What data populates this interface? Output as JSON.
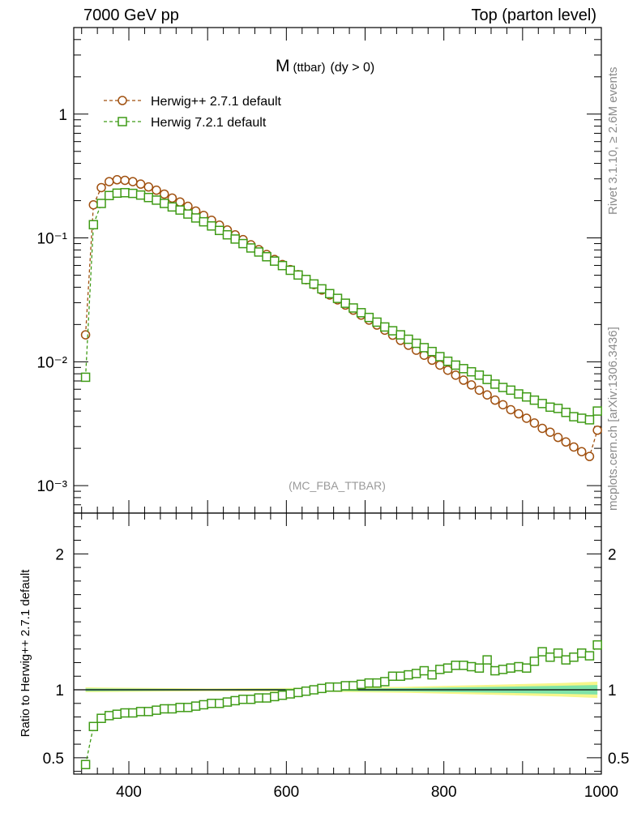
{
  "header": {
    "left": "7000 GeV pp",
    "right": "Top (parton level)"
  },
  "sidetext": {
    "rivet": "Rivet 3.1.10, ≥ 2.6M events",
    "mcplots": "mcplots.cern.ch [arXiv:1306.3436]"
  },
  "chart_data": {
    "type": "line",
    "title_main": "M",
    "title_sub": "(ttbar)",
    "title_cut": "(dy > 0)",
    "watermark": "(MC_FBA_TTBAR)",
    "xlim": [
      330,
      1000
    ],
    "main_panel": {
      "yscale": "log",
      "ylim": [
        0.0006,
        5
      ],
      "ytick_labels": [
        "1",
        "10⁻¹",
        "10⁻²",
        "10⁻³"
      ],
      "ytick_values": [
        1,
        0.1,
        0.01,
        0.001
      ],
      "legend_position": "top-left"
    },
    "ratio_panel": {
      "ylabel": "Ratio to Herwig++ 2.7.1 default",
      "ylim": [
        0.38,
        2.3
      ],
      "ytick_values": [
        0.5,
        1,
        2
      ],
      "ytick_labels": [
        "0.5",
        "1",
        "2"
      ]
    },
    "xtick_values": [
      400,
      600,
      800,
      1000
    ],
    "xtick_labels": [
      "400",
      "600",
      "800",
      "1000"
    ],
    "x": [
      345,
      355,
      365,
      375,
      385,
      395,
      405,
      415,
      425,
      435,
      445,
      455,
      465,
      475,
      485,
      495,
      505,
      515,
      525,
      535,
      545,
      555,
      565,
      575,
      585,
      595,
      605,
      615,
      625,
      635,
      645,
      655,
      665,
      675,
      685,
      695,
      705,
      715,
      725,
      735,
      745,
      755,
      765,
      775,
      785,
      795,
      805,
      815,
      825,
      835,
      845,
      855,
      865,
      875,
      885,
      895,
      905,
      915,
      925,
      935,
      945,
      955,
      965,
      975,
      985,
      995
    ],
    "series": [
      {
        "name": "Herwig++ 2.7.1 default",
        "color": "#a0500f",
        "marker": "circle",
        "values": [
          0.0165,
          0.185,
          0.255,
          0.285,
          0.295,
          0.292,
          0.285,
          0.272,
          0.258,
          0.243,
          0.226,
          0.21,
          0.195,
          0.18,
          0.165,
          0.152,
          0.139,
          0.127,
          0.116,
          0.106,
          0.097,
          0.088,
          0.0805,
          0.0735,
          0.067,
          0.061,
          0.0555,
          0.0505,
          0.046,
          0.042,
          0.038,
          0.0346,
          0.0316,
          0.0287,
          0.0261,
          0.0238,
          0.0217,
          0.0198,
          0.018,
          0.0164,
          0.0149,
          0.0136,
          0.0124,
          0.0113,
          0.0103,
          0.0094,
          0.00855,
          0.0078,
          0.0071,
          0.0065,
          0.0059,
          0.0054,
          0.0049,
          0.0045,
          0.0041,
          0.0038,
          0.0035,
          0.0032,
          0.0029,
          0.0027,
          0.00245,
          0.00225,
          0.00205,
          0.00188,
          0.00172,
          0.0028
        ]
      },
      {
        "name": "Herwig 7.2.1 default",
        "color": "#3f9b16",
        "marker": "square",
        "values": [
          0.0075,
          0.128,
          0.19,
          0.22,
          0.23,
          0.232,
          0.229,
          0.222,
          0.212,
          0.202,
          0.19,
          0.178,
          0.168,
          0.156,
          0.145,
          0.135,
          0.125,
          0.115,
          0.106,
          0.098,
          0.09,
          0.083,
          0.077,
          0.0705,
          0.065,
          0.0598,
          0.0548,
          0.0502,
          0.0462,
          0.0425,
          0.0388,
          0.0355,
          0.0325,
          0.0297,
          0.0272,
          0.0249,
          0.0228,
          0.0209,
          0.0191,
          0.0178,
          0.0165,
          0.0152,
          0.0141,
          0.013,
          0.0121,
          0.011,
          0.0101,
          0.0094,
          0.0088,
          0.0083,
          0.0078,
          0.0072,
          0.0066,
          0.0062,
          0.0059,
          0.0055,
          0.0052,
          0.0049,
          0.0046,
          0.0043,
          0.0042,
          0.0039,
          0.0036,
          0.0035,
          0.0034,
          0.004
        ]
      }
    ],
    "ratio_values": [
      0.45,
      0.73,
      0.79,
      0.81,
      0.82,
      0.83,
      0.83,
      0.84,
      0.84,
      0.85,
      0.86,
      0.86,
      0.87,
      0.87,
      0.88,
      0.89,
      0.9,
      0.9,
      0.91,
      0.92,
      0.93,
      0.93,
      0.94,
      0.94,
      0.95,
      0.96,
      0.97,
      0.98,
      0.99,
      1.0,
      1.01,
      1.02,
      1.02,
      1.03,
      1.03,
      1.04,
      1.05,
      1.05,
      1.06,
      1.1,
      1.1,
      1.11,
      1.12,
      1.14,
      1.11,
      1.15,
      1.16,
      1.18,
      1.18,
      1.17,
      1.16,
      1.22,
      1.14,
      1.15,
      1.16,
      1.17,
      1.16,
      1.21,
      1.28,
      1.24,
      1.27,
      1.22,
      1.24,
      1.27,
      1.25,
      1.33
    ],
    "ratio_band": {
      "x": [
        345,
        500,
        650,
        750,
        850,
        950,
        995
      ],
      "inner": [
        0.01,
        0.005,
        0.008,
        0.012,
        0.02,
        0.03,
        0.035
      ],
      "outer": [
        0.018,
        0.01,
        0.015,
        0.022,
        0.035,
        0.05,
        0.06
      ]
    }
  }
}
